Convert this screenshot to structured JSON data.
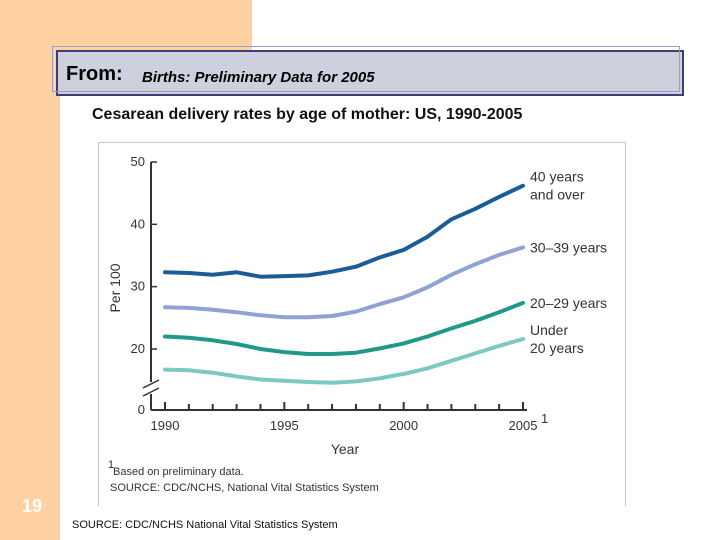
{
  "header": {
    "from_label": "From:",
    "source_title": "Births: Preliminary Data for 2005"
  },
  "chart_title": "Cesarean delivery rates by age of mother: US, 1990-2005",
  "slide_number": "19",
  "footer_source": "SOURCE: CDC/NCHS National Vital Statistics System",
  "colors": {
    "slide_orange": "#fdd1a0",
    "title_box": "#cfd0de",
    "title_border": "#3b3f73",
    "s40": "#1b5c96",
    "s30": "#8fa1d6",
    "s20": "#1f9a8a",
    "su20": "#7cc8c2"
  },
  "chart_data": {
    "type": "line",
    "x": [
      1990,
      1991,
      1992,
      1993,
      1994,
      1995,
      1996,
      1997,
      1998,
      1999,
      2000,
      2001,
      2002,
      2003,
      2004,
      2005
    ],
    "xticks": [
      1990,
      1995,
      2000,
      2005
    ],
    "xtick_labels": [
      "1990",
      "1995",
      "2000",
      "2005"
    ],
    "xtick_superscript_last": "1",
    "xlabel": "Year",
    "ylabel": "Per 100",
    "yticks": [
      0,
      20,
      30,
      40,
      50
    ],
    "ylim_broken": [
      20,
      50
    ],
    "axis_break": true,
    "series": [
      {
        "name": "40 years and over",
        "label_lines": [
          "40 years",
          "and over"
        ],
        "color_key": "s40",
        "values": [
          32.3,
          32.2,
          31.9,
          32.3,
          31.6,
          31.7,
          31.8,
          32.4,
          33.2,
          34.7,
          35.9,
          38.0,
          40.8,
          42.5,
          44.4,
          46.2
        ]
      },
      {
        "name": "30–39 years",
        "label_lines": [
          "30–39 years"
        ],
        "color_key": "s30",
        "values": [
          26.7,
          26.6,
          26.3,
          25.9,
          25.4,
          25.1,
          25.1,
          25.3,
          26.0,
          27.2,
          28.3,
          29.9,
          31.9,
          33.6,
          35.1,
          36.3
        ]
      },
      {
        "name": "20–29 years",
        "label_lines": [
          "20–29 years"
        ],
        "color_key": "s20",
        "values": [
          22.0,
          21.8,
          21.4,
          20.8,
          20.0,
          19.5,
          19.2,
          19.2,
          19.4,
          20.1,
          20.9,
          22.0,
          23.3,
          24.5,
          25.9,
          27.4
        ]
      },
      {
        "name": "Under 20 years",
        "label_lines": [
          "Under",
          "20 years"
        ],
        "color_key": "su20",
        "values": [
          16.7,
          16.6,
          16.2,
          15.6,
          15.1,
          14.9,
          14.7,
          14.6,
          14.8,
          15.3,
          16.0,
          16.9,
          18.1,
          19.3,
          20.5,
          21.6
        ]
      }
    ],
    "notes": {
      "superscript": "1",
      "preliminary": "Based on preliminary data.",
      "source": "SOURCE: CDC/NCHS, National Vital Statistics System"
    },
    "grid": false,
    "legend": "inline-right"
  }
}
